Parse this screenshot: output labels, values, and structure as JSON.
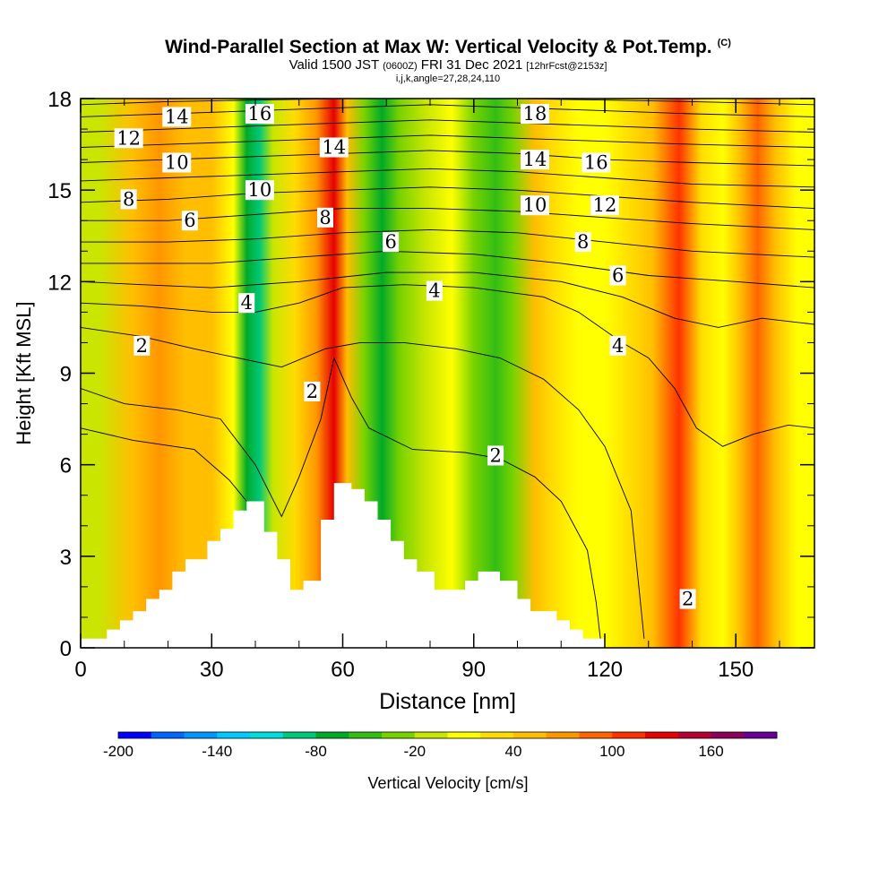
{
  "header": {
    "title": "Wind-Parallel Section at Max W: Vertical Velocity & Pot.Temp.",
    "title_tag": "(C)",
    "subtitle_valid": "Valid 1500 JST",
    "subtitle_utc": "(0600Z)",
    "subtitle_date": "FRI 31 Dec 2021",
    "subtitle_fcst": "[12hrFcst@2153z]",
    "indices": "i,j,k,angle=27,28,24,110"
  },
  "chart_data": {
    "type": "heatmap",
    "xlabel": "Distance [nm]",
    "ylabel": "Height [Kft MSL]",
    "xlim": [
      0,
      168
    ],
    "ylim": [
      0,
      18
    ],
    "x_ticks": [
      0,
      30,
      60,
      90,
      120,
      150
    ],
    "y_ticks": [
      0,
      3,
      6,
      9,
      12,
      15,
      18
    ],
    "colorbar": {
      "label": "Vertical Velocity [cm/s]",
      "range": [
        -200,
        200
      ],
      "tick_labels": [
        "-200",
        "-140",
        "-80",
        "-20",
        "40",
        "100",
        "160"
      ],
      "tick_values": [
        -200,
        -140,
        -80,
        -20,
        40,
        100,
        160
      ],
      "colors": [
        "#0000ff",
        "#0064ff",
        "#0096ff",
        "#00c8ff",
        "#00dcdc",
        "#00c878",
        "#00aa28",
        "#32be14",
        "#78d200",
        "#c8e600",
        "#ffff00",
        "#ffdc00",
        "#ffbe00",
        "#ff9600",
        "#ff6400",
        "#ff3200",
        "#e60000",
        "#b40032",
        "#8c005a",
        "#640096"
      ]
    },
    "w_columns": [
      {
        "x": 4,
        "w": -5
      },
      {
        "x": 12,
        "w": 40
      },
      {
        "x": 18,
        "w": 60
      },
      {
        "x": 24,
        "w": 50
      },
      {
        "x": 30,
        "w": 55
      },
      {
        "x": 35,
        "w": 10
      },
      {
        "x": 38,
        "w": -70
      },
      {
        "x": 41,
        "w": -85
      },
      {
        "x": 44,
        "w": -20
      },
      {
        "x": 49,
        "w": 35
      },
      {
        "x": 54,
        "w": 60
      },
      {
        "x": 58,
        "w": 120
      },
      {
        "x": 61,
        "w": 40
      },
      {
        "x": 65,
        "w": -40
      },
      {
        "x": 69,
        "w": -80
      },
      {
        "x": 73,
        "w": -35
      },
      {
        "x": 79,
        "w": -10
      },
      {
        "x": 85,
        "w": 0
      },
      {
        "x": 90,
        "w": -25
      },
      {
        "x": 95,
        "w": -60
      },
      {
        "x": 99,
        "w": -30
      },
      {
        "x": 104,
        "w": 50
      },
      {
        "x": 108,
        "w": 25
      },
      {
        "x": 114,
        "w": 5
      },
      {
        "x": 120,
        "w": 10
      },
      {
        "x": 126,
        "w": 20
      },
      {
        "x": 131,
        "w": 40
      },
      {
        "x": 137,
        "w": 110
      },
      {
        "x": 142,
        "w": 35
      },
      {
        "x": 147,
        "w": 10
      },
      {
        "x": 151,
        "w": 40
      },
      {
        "x": 155,
        "w": 90
      },
      {
        "x": 159,
        "w": 40
      },
      {
        "x": 164,
        "w": 5
      }
    ],
    "terrain": [
      [
        0,
        0.3
      ],
      [
        6,
        0.3
      ],
      [
        6,
        0.6
      ],
      [
        9,
        0.6
      ],
      [
        9,
        0.9
      ],
      [
        12,
        0.9
      ],
      [
        12,
        1.2
      ],
      [
        15,
        1.2
      ],
      [
        15,
        1.6
      ],
      [
        18,
        1.6
      ],
      [
        18,
        1.9
      ],
      [
        21,
        1.9
      ],
      [
        21,
        2.5
      ],
      [
        24,
        2.5
      ],
      [
        24,
        2.9
      ],
      [
        29,
        2.9
      ],
      [
        29,
        3.5
      ],
      [
        32,
        3.5
      ],
      [
        32,
        3.9
      ],
      [
        35,
        3.9
      ],
      [
        35,
        4.5
      ],
      [
        38,
        4.5
      ],
      [
        38,
        4.8
      ],
      [
        42,
        4.8
      ],
      [
        42,
        3.8
      ],
      [
        45,
        3.8
      ],
      [
        45,
        2.9
      ],
      [
        48,
        2.9
      ],
      [
        48,
        1.9
      ],
      [
        51,
        1.9
      ],
      [
        51,
        2.2
      ],
      [
        55,
        2.2
      ],
      [
        55,
        4.2
      ],
      [
        58,
        4.2
      ],
      [
        58,
        5.4
      ],
      [
        62,
        5.4
      ],
      [
        62,
        5.2
      ],
      [
        65,
        5.2
      ],
      [
        65,
        4.8
      ],
      [
        68,
        4.8
      ],
      [
        68,
        4.2
      ],
      [
        71,
        4.2
      ],
      [
        71,
        3.5
      ],
      [
        74,
        3.5
      ],
      [
        74,
        2.9
      ],
      [
        77,
        2.9
      ],
      [
        77,
        2.5
      ],
      [
        81,
        2.5
      ],
      [
        81,
        1.9
      ],
      [
        88,
        1.9
      ],
      [
        88,
        2.2
      ],
      [
        91,
        2.2
      ],
      [
        91,
        2.5
      ],
      [
        96,
        2.5
      ],
      [
        96,
        2.2
      ],
      [
        100,
        2.2
      ],
      [
        100,
        1.6
      ],
      [
        103,
        1.6
      ],
      [
        103,
        1.2
      ],
      [
        109,
        1.2
      ],
      [
        109,
        0.9
      ],
      [
        112,
        0.9
      ],
      [
        112,
        0.6
      ],
      [
        115,
        0.6
      ],
      [
        115,
        0.3
      ],
      [
        120,
        0.3
      ]
    ],
    "isentropes": [
      {
        "label": "2",
        "points": [
          [
            0,
            8.5
          ],
          [
            10,
            8.0
          ],
          [
            22,
            7.8
          ],
          [
            32,
            7.5
          ],
          [
            40,
            6.0
          ],
          [
            46,
            4.3
          ],
          [
            50,
            5.6
          ],
          [
            55,
            7.5
          ],
          [
            58,
            9.5
          ],
          [
            62,
            8.2
          ],
          [
            66,
            7.2
          ],
          [
            76,
            6.5
          ],
          [
            88,
            6.4
          ],
          [
            96,
            6.2
          ],
          [
            104,
            5.6
          ],
          [
            110,
            4.8
          ],
          [
            116,
            3.2
          ],
          [
            118,
            1.5
          ],
          [
            119,
            0.3
          ]
        ]
      },
      {
        "label": "",
        "points": [
          [
            0,
            7.2
          ],
          [
            12,
            6.8
          ],
          [
            26,
            6.5
          ],
          [
            34,
            5.5
          ],
          [
            38,
            4.8
          ]
        ]
      },
      {
        "label": "2",
        "points": [
          [
            0,
            10.5
          ],
          [
            14,
            10.2
          ],
          [
            26,
            9.8
          ],
          [
            36,
            9.5
          ],
          [
            46,
            9.2
          ],
          [
            56,
            9.8
          ],
          [
            64,
            10.0
          ],
          [
            74,
            10.0
          ],
          [
            86,
            9.8
          ],
          [
            96,
            9.5
          ],
          [
            106,
            8.8
          ],
          [
            114,
            7.8
          ],
          [
            120,
            6.6
          ],
          [
            126,
            4.5
          ],
          [
            129,
            0.3
          ]
        ]
      },
      {
        "label": "4",
        "points": [
          [
            0,
            11.3
          ],
          [
            14,
            11.2
          ],
          [
            30,
            11.0
          ],
          [
            40,
            11.0
          ],
          [
            50,
            11.3
          ],
          [
            60,
            11.8
          ],
          [
            74,
            11.9
          ],
          [
            90,
            11.8
          ],
          [
            106,
            11.5
          ],
          [
            114,
            11.0
          ],
          [
            124,
            10.0
          ],
          [
            130,
            9.5
          ],
          [
            136,
            8.5
          ],
          [
            141,
            7.2
          ],
          [
            147,
            6.6
          ],
          [
            154,
            7.0
          ],
          [
            162,
            7.3
          ],
          [
            168,
            7.2
          ]
        ]
      },
      {
        "label": "",
        "points": [
          [
            0,
            12.0
          ],
          [
            14,
            11.9
          ],
          [
            30,
            11.8
          ],
          [
            50,
            12.0
          ],
          [
            70,
            12.3
          ],
          [
            90,
            12.3
          ],
          [
            110,
            12.0
          ],
          [
            124,
            11.5
          ],
          [
            136,
            10.8
          ],
          [
            146,
            10.5
          ],
          [
            156,
            10.8
          ],
          [
            168,
            10.6
          ]
        ]
      },
      {
        "label": "6",
        "points": [
          [
            0,
            12.6
          ],
          [
            14,
            12.6
          ],
          [
            30,
            12.6
          ],
          [
            50,
            12.8
          ],
          [
            70,
            13.0
          ],
          [
            90,
            12.9
          ],
          [
            110,
            12.6
          ],
          [
            130,
            12.2
          ],
          [
            150,
            12.0
          ],
          [
            168,
            11.8
          ]
        ]
      },
      {
        "label": "",
        "points": [
          [
            0,
            13.3
          ],
          [
            20,
            13.3
          ],
          [
            40,
            13.4
          ],
          [
            60,
            13.6
          ],
          [
            80,
            13.7
          ],
          [
            100,
            13.6
          ],
          [
            120,
            13.3
          ],
          [
            140,
            13.0
          ],
          [
            168,
            12.8
          ]
        ]
      },
      {
        "label": "8",
        "points": [
          [
            0,
            14.0
          ],
          [
            20,
            14.0
          ],
          [
            40,
            14.2
          ],
          [
            60,
            14.4
          ],
          [
            80,
            14.4
          ],
          [
            100,
            14.3
          ],
          [
            120,
            14.1
          ],
          [
            140,
            13.9
          ],
          [
            168,
            13.7
          ]
        ]
      },
      {
        "label": "",
        "points": [
          [
            0,
            14.6
          ],
          [
            20,
            14.7
          ],
          [
            40,
            14.9
          ],
          [
            60,
            15.0
          ],
          [
            80,
            15.1
          ],
          [
            100,
            15.0
          ],
          [
            120,
            14.8
          ],
          [
            140,
            14.6
          ],
          [
            168,
            14.4
          ]
        ]
      },
      {
        "label": "10",
        "points": [
          [
            0,
            15.3
          ],
          [
            20,
            15.4
          ],
          [
            40,
            15.5
          ],
          [
            60,
            15.6
          ],
          [
            80,
            15.7
          ],
          [
            100,
            15.6
          ],
          [
            120,
            15.4
          ],
          [
            140,
            15.2
          ],
          [
            168,
            15.1
          ]
        ]
      },
      {
        "label": "",
        "points": [
          [
            0,
            15.9
          ],
          [
            20,
            16.0
          ],
          [
            40,
            16.1
          ],
          [
            60,
            16.2
          ],
          [
            80,
            16.3
          ],
          [
            100,
            16.2
          ],
          [
            120,
            16.0
          ],
          [
            140,
            15.9
          ],
          [
            168,
            15.8
          ]
        ]
      },
      {
        "label": "12",
        "points": [
          [
            0,
            16.4
          ],
          [
            20,
            16.5
          ],
          [
            40,
            16.6
          ],
          [
            60,
            16.7
          ],
          [
            80,
            16.8
          ],
          [
            100,
            16.7
          ],
          [
            120,
            16.6
          ],
          [
            140,
            16.5
          ],
          [
            168,
            16.4
          ]
        ]
      },
      {
        "label": "",
        "points": [
          [
            0,
            16.9
          ],
          [
            20,
            17.0
          ],
          [
            40,
            17.1
          ],
          [
            60,
            17.2
          ],
          [
            80,
            17.3
          ],
          [
            100,
            17.2
          ],
          [
            120,
            17.1
          ],
          [
            140,
            17.0
          ],
          [
            168,
            16.9
          ]
        ]
      },
      {
        "label": "14",
        "points": [
          [
            0,
            17.4
          ],
          [
            20,
            17.5
          ],
          [
            40,
            17.6
          ],
          [
            60,
            17.7
          ],
          [
            80,
            17.8
          ],
          [
            100,
            17.7
          ],
          [
            120,
            17.6
          ],
          [
            140,
            17.5
          ],
          [
            168,
            17.4
          ]
        ]
      },
      {
        "label": "",
        "points": [
          [
            0,
            17.8
          ],
          [
            20,
            17.9
          ],
          [
            40,
            17.95
          ],
          [
            60,
            18.0
          ],
          [
            80,
            18.0
          ],
          [
            100,
            18.0
          ],
          [
            120,
            17.95
          ],
          [
            140,
            17.9
          ],
          [
            168,
            17.8
          ]
        ]
      }
    ],
    "contour_labels": [
      {
        "text": "14",
        "x": 22,
        "y": 17.4
      },
      {
        "text": "16",
        "x": 41,
        "y": 17.5
      },
      {
        "text": "18",
        "x": 104,
        "y": 17.5
      },
      {
        "text": "12",
        "x": 11,
        "y": 16.7
      },
      {
        "text": "14",
        "x": 58,
        "y": 16.4
      },
      {
        "text": "10",
        "x": 22,
        "y": 15.9
      },
      {
        "text": "14",
        "x": 104,
        "y": 16.0
      },
      {
        "text": "16",
        "x": 118,
        "y": 15.9
      },
      {
        "text": "8",
        "x": 11,
        "y": 14.7
      },
      {
        "text": "10",
        "x": 41,
        "y": 15.0
      },
      {
        "text": "10",
        "x": 104,
        "y": 14.5
      },
      {
        "text": "12",
        "x": 120,
        "y": 14.5
      },
      {
        "text": "6",
        "x": 25,
        "y": 14.0
      },
      {
        "text": "8",
        "x": 56,
        "y": 14.1
      },
      {
        "text": "6",
        "x": 71,
        "y": 13.3
      },
      {
        "text": "8",
        "x": 115,
        "y": 13.3
      },
      {
        "text": "6",
        "x": 123,
        "y": 12.2
      },
      {
        "text": "4",
        "x": 81,
        "y": 11.7
      },
      {
        "text": "4",
        "x": 38,
        "y": 11.3
      },
      {
        "text": "2",
        "x": 14,
        "y": 9.9
      },
      {
        "text": "4",
        "x": 123,
        "y": 9.9
      },
      {
        "text": "2",
        "x": 53,
        "y": 8.4
      },
      {
        "text": "2",
        "x": 95,
        "y": 6.3
      },
      {
        "text": "2",
        "x": 139,
        "y": 1.6
      }
    ]
  }
}
